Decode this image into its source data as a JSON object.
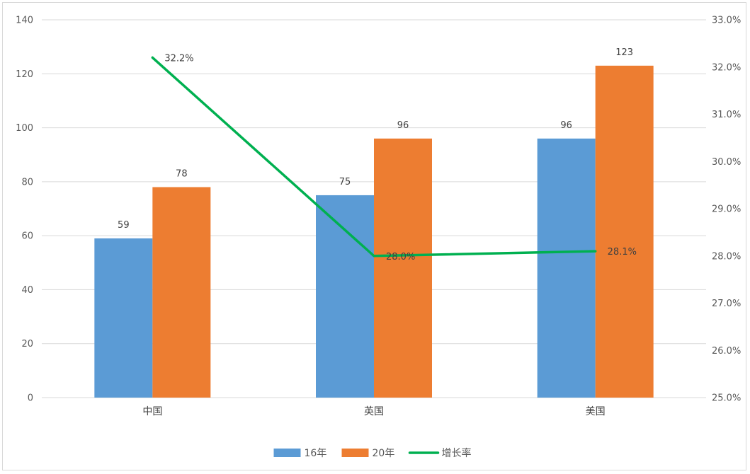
{
  "chart_data": {
    "type": "bar",
    "categories": [
      "中国",
      "英国",
      "美国"
    ],
    "series": [
      {
        "name": "16年",
        "type": "bar",
        "axis": "left",
        "values": [
          59,
          75,
          96
        ],
        "color": "#5b9bd5"
      },
      {
        "name": "20年",
        "type": "bar",
        "axis": "left",
        "values": [
          78,
          96,
          123
        ],
        "color": "#ed7d31"
      },
      {
        "name": "增长率",
        "type": "line",
        "axis": "right",
        "values": [
          32.2,
          28.0,
          28.1
        ],
        "color": "#00b050"
      }
    ],
    "data_labels": {
      "16年": [
        "59",
        "75",
        "96"
      ],
      "20年": [
        "78",
        "96",
        "123"
      ],
      "增长率": [
        "32.2%",
        "28.0%",
        "28.1%"
      ]
    },
    "y_left": {
      "min": 0,
      "max": 140,
      "step": 20,
      "ticks": [
        "0",
        "20",
        "40",
        "60",
        "80",
        "100",
        "120",
        "140"
      ]
    },
    "y_right": {
      "min": 25.0,
      "max": 33.0,
      "step": 1.0,
      "ticks": [
        "25.0%",
        "26.0%",
        "27.0%",
        "28.0%",
        "29.0%",
        "30.0%",
        "31.0%",
        "32.0%",
        "33.0%"
      ]
    },
    "grid": true,
    "legend_position": "bottom",
    "title": "",
    "xlabel": "",
    "ylabel": ""
  }
}
